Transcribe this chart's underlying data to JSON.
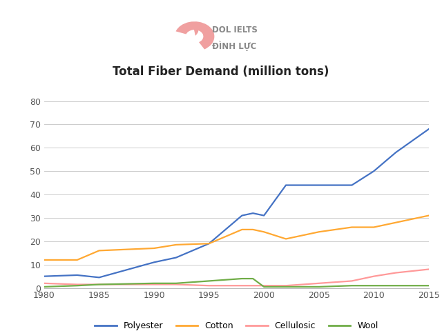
{
  "title": "Total Fiber Demand (million tons)",
  "years": [
    1980,
    1983,
    1985,
    1990,
    1992,
    1995,
    1998,
    1999,
    2000,
    2002,
    2005,
    2008,
    2010,
    2012,
    2015
  ],
  "polyester": [
    5,
    5.5,
    4.5,
    11,
    13,
    19,
    31,
    32,
    31,
    44,
    44,
    44,
    50,
    58,
    68
  ],
  "cotton": [
    12,
    12,
    16,
    17,
    18.5,
    19,
    25,
    25,
    24,
    21,
    24,
    26,
    26,
    28,
    31
  ],
  "cellulosic": [
    2,
    1.5,
    1.5,
    1.5,
    1.5,
    1,
    1,
    1,
    1,
    1,
    2,
    3,
    5,
    6.5,
    8
  ],
  "wool": [
    0.5,
    1,
    1.5,
    2,
    2,
    3,
    4,
    4,
    0.5,
    0.5,
    0.5,
    1,
    1,
    1,
    1
  ],
  "polyester_color": "#4472C4",
  "cotton_color": "#FFA832",
  "cellulosic_color": "#FF9999",
  "wool_color": "#70AD47",
  "background_color": "#FFFFFF",
  "grid_color": "#CCCCCC",
  "ylim": [
    0,
    85
  ],
  "yticks": [
    0,
    10,
    20,
    30,
    40,
    50,
    60,
    70,
    80
  ],
  "xlim": [
    1980,
    2015
  ],
  "xticks": [
    1980,
    1985,
    1990,
    1995,
    2000,
    2005,
    2010,
    2015
  ],
  "legend_labels": [
    "Polyester",
    "Cotton",
    "Cellulosic",
    "Wool"
  ],
  "linewidth": 1.6,
  "logo_text1": "DOL IELTS",
  "logo_text2": "ĐÌNH LỰC",
  "logo_color": "#AAAAAA",
  "logo_pink": "#F0A0A0"
}
